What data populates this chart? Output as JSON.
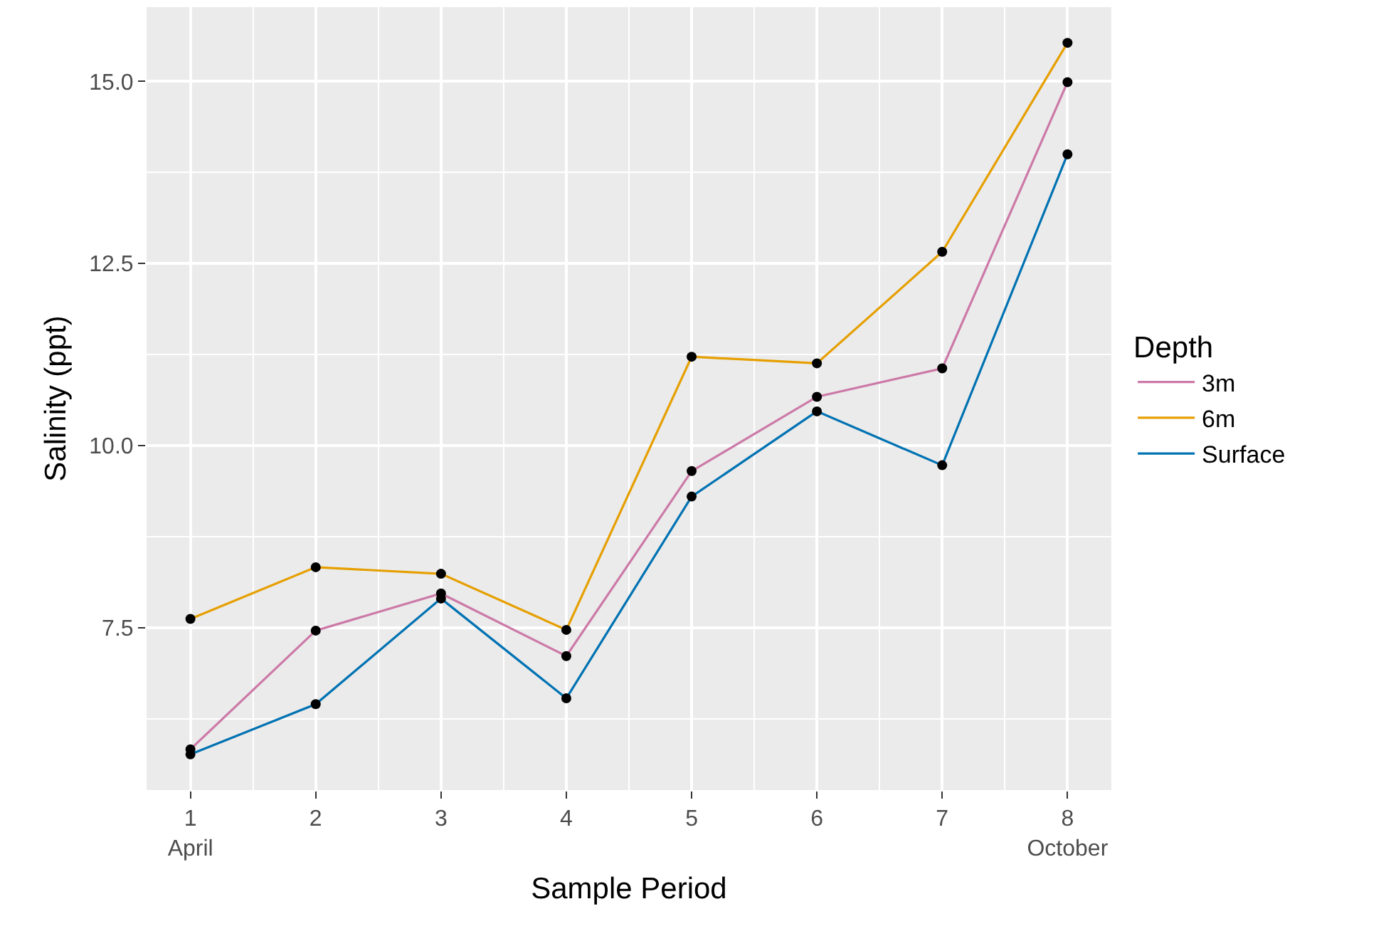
{
  "chart_data": {
    "type": "line",
    "xlabel": "Sample Period",
    "ylabel": "Salinity (ppt)",
    "legend_title": "Depth",
    "x": [
      1,
      2,
      3,
      4,
      5,
      6,
      7,
      8
    ],
    "series": [
      {
        "name": "3m",
        "color": "#cc79a7",
        "values": [
          5.83,
          7.46,
          7.97,
          7.11,
          9.65,
          10.67,
          11.06,
          14.99
        ]
      },
      {
        "name": "6m",
        "color": "#e69f00",
        "values": [
          7.62,
          8.33,
          8.24,
          7.47,
          11.22,
          11.13,
          12.66,
          15.53
        ]
      },
      {
        "name": "Surface",
        "color": "#0072b2",
        "values": [
          5.76,
          6.45,
          7.9,
          6.53,
          9.3,
          10.47,
          9.73,
          14.0
        ]
      }
    ],
    "xlim": [
      0.65,
      8.35
    ],
    "xticks": [
      {
        "value": 1,
        "label": "1\nApril"
      },
      2,
      3,
      4,
      5,
      6,
      7,
      {
        "value": 8,
        "label": "8\nOctober"
      }
    ],
    "ylim": [
      5.27,
      16.02
    ],
    "yticks": [
      {
        "value": 7.5,
        "label": "7.5"
      },
      {
        "value": 10,
        "label": "10.0"
      },
      {
        "value": 12.5,
        "label": "12.5"
      },
      {
        "value": 15,
        "label": "15.0"
      }
    ],
    "grid": true,
    "legend": "right",
    "marker": "circle",
    "line_style": "solid"
  }
}
